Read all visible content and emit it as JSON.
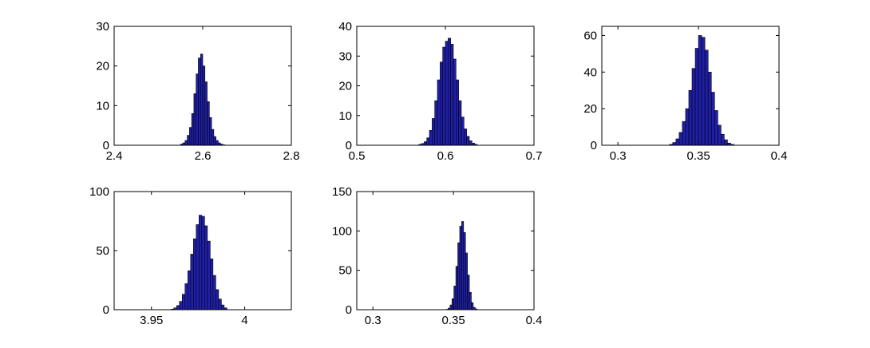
{
  "chart_data": [
    {
      "type": "histogram",
      "color": "#1f1fa8",
      "bins": [
        2.55,
        2.555,
        2.56,
        2.565,
        2.57,
        2.575,
        2.58,
        2.585,
        2.59,
        2.595,
        2.6,
        2.605,
        2.61,
        2.615,
        2.62,
        2.625,
        2.63,
        2.635,
        2.64,
        2.645,
        2.65,
        2.655
      ],
      "values": [
        0.3,
        0.6,
        1.2,
        2.5,
        4.5,
        8,
        13,
        18,
        22,
        23,
        20,
        16,
        11,
        7,
        4,
        2.2,
        1.2,
        0.6,
        0.3,
        0.1,
        0.05
      ],
      "xlim": [
        2.4,
        2.8
      ],
      "xticks": [
        2.4,
        2.6,
        2.8
      ],
      "ylim": [
        0,
        30
      ],
      "yticks": [
        0,
        10,
        20,
        30
      ]
    },
    {
      "type": "histogram",
      "color": "#1f1fa8",
      "bins": [
        0.57,
        0.573,
        0.576,
        0.579,
        0.582,
        0.585,
        0.588,
        0.591,
        0.594,
        0.597,
        0.6,
        0.603,
        0.606,
        0.609,
        0.612,
        0.615,
        0.618,
        0.621,
        0.624,
        0.627,
        0.63,
        0.633,
        0.636
      ],
      "values": [
        0.3,
        0.6,
        1.2,
        2.5,
        5,
        9,
        15,
        22,
        28,
        33,
        35,
        36,
        34,
        29,
        22,
        15,
        9.5,
        5.5,
        3,
        1.5,
        0.7,
        0.3
      ],
      "xlim": [
        0.5,
        0.7
      ],
      "xticks": [
        0.5,
        0.6,
        0.7
      ],
      "ylim": [
        0,
        40
      ],
      "yticks": [
        0,
        10,
        20,
        30,
        40
      ]
    },
    {
      "type": "histogram",
      "color": "#1f1fa8",
      "bins": [
        0.332,
        0.334,
        0.336,
        0.338,
        0.34,
        0.342,
        0.344,
        0.346,
        0.348,
        0.35,
        0.352,
        0.354,
        0.356,
        0.358,
        0.36,
        0.362,
        0.364,
        0.366,
        0.368,
        0.37,
        0.372
      ],
      "values": [
        0.5,
        1.5,
        3.5,
        7,
        13,
        20,
        30,
        42,
        53,
        60,
        59,
        52,
        40,
        29,
        19,
        11,
        6,
        3,
        1.2,
        0.5
      ],
      "xlim": [
        0.29,
        0.4
      ],
      "xticks": [
        0.3,
        0.35,
        0.4
      ],
      "ylim": [
        0,
        65
      ],
      "yticks": [
        0,
        20,
        40,
        60
      ]
    },
    {
      "type": "histogram",
      "color": "#1f1fa8",
      "bins": [
        3.9605,
        3.962,
        3.9635,
        3.965,
        3.9665,
        3.968,
        3.9695,
        3.971,
        3.9725,
        3.974,
        3.9755,
        3.977,
        3.9785,
        3.98,
        3.9815,
        3.983,
        3.9845,
        3.986,
        3.9875,
        3.989,
        3.9905
      ],
      "values": [
        0.5,
        1.5,
        3.5,
        7,
        13,
        22,
        33,
        47,
        60,
        72,
        80,
        79,
        71,
        58,
        43,
        29,
        17,
        9,
        4,
        1.5
      ],
      "xlim": [
        3.93,
        4.025
      ],
      "xticks": [
        3.95,
        4
      ],
      "ylim": [
        0,
        100
      ],
      "yticks": [
        0,
        50,
        100
      ]
    },
    {
      "type": "histogram",
      "color": "#1f1fa8",
      "bins": [
        0.3455,
        0.3467,
        0.3479,
        0.3491,
        0.3503,
        0.3515,
        0.3527,
        0.3539,
        0.3551,
        0.3563,
        0.3575,
        0.3587,
        0.3599,
        0.3611,
        0.3623,
        0.3635,
        0.3647
      ],
      "values": [
        0.5,
        2,
        6,
        14,
        30,
        55,
        85,
        106,
        112,
        98,
        72,
        44,
        22,
        9,
        3,
        1
      ],
      "xlim": [
        0.29,
        0.4
      ],
      "xticks": [
        0.3,
        0.35,
        0.4
      ],
      "ylim": [
        0,
        150
      ],
      "yticks": [
        0,
        50,
        100,
        150
      ]
    }
  ]
}
